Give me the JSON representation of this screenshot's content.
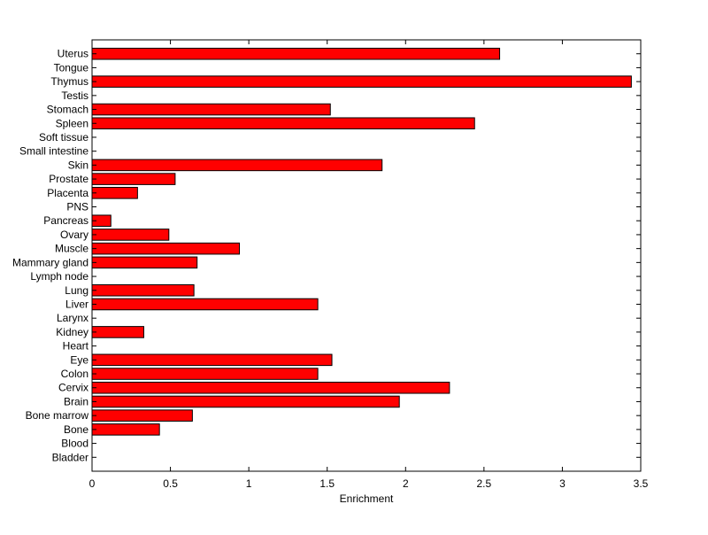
{
  "chart_data": {
    "type": "bar",
    "orientation": "horizontal",
    "title": "",
    "xlabel": "Enrichment",
    "ylabel": "",
    "xlim": [
      0,
      3.5
    ],
    "xticks": [
      "0",
      "0.5",
      "1",
      "1.5",
      "2",
      "2.5",
      "3",
      "3.5"
    ],
    "grid": false,
    "legend": "none",
    "bar_color": "#ff0000",
    "bar_edge_color": "#000000",
    "categories": [
      "Bladder",
      "Blood",
      "Bone",
      "Bone marrow",
      "Brain",
      "Cervix",
      "Colon",
      "Eye",
      "Heart",
      "Kidney",
      "Larynx",
      "Liver",
      "Lung",
      "Lymph node",
      "Mammary gland",
      "Muscle",
      "Ovary",
      "Pancreas",
      "PNS",
      "Placenta",
      "Prostate",
      "Skin",
      "Small intestine",
      "Soft tissue",
      "Spleen",
      "Stomach",
      "Testis",
      "Thymus",
      "Tongue",
      "Uterus"
    ],
    "values": [
      0,
      0,
      0.43,
      0.64,
      1.96,
      2.28,
      1.44,
      1.53,
      0,
      0.33,
      0,
      1.44,
      0.65,
      0,
      0.67,
      0.94,
      0.49,
      0.12,
      0,
      0.29,
      0.53,
      1.85,
      0,
      0,
      2.44,
      1.52,
      0,
      3.44,
      0,
      2.6
    ]
  }
}
